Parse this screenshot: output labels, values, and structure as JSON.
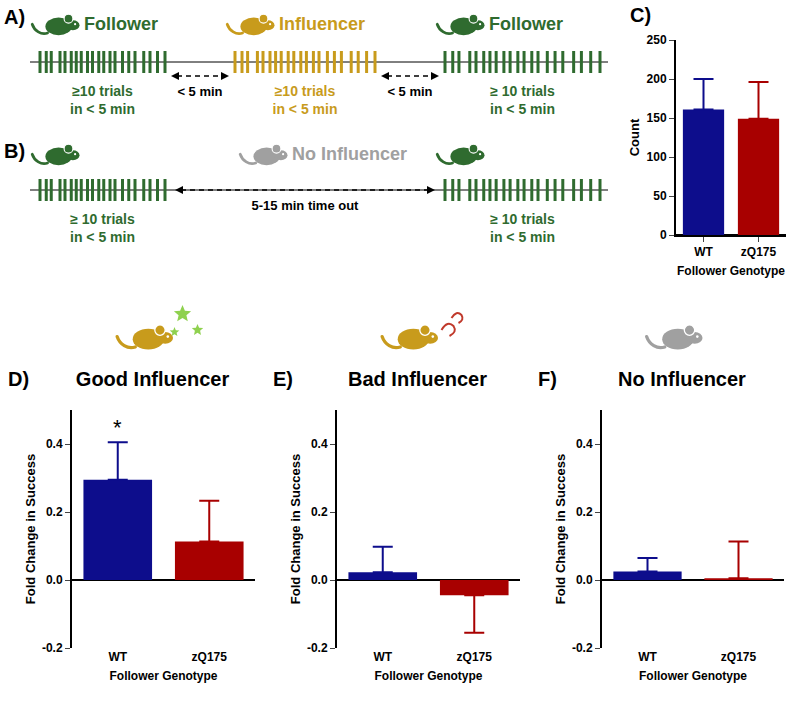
{
  "diagrams": {
    "A": {
      "label": "A)",
      "segments": [
        {
          "role": "Follower",
          "lines": [
            "≥10 trials",
            "in < 5 min"
          ]
        },
        {
          "role": "Influencer",
          "lines": [
            "≥10 trials",
            "in < 5 min"
          ]
        },
        {
          "role": "Follower",
          "lines": [
            "≥ 10 trials",
            "in < 5 min"
          ]
        }
      ],
      "gaps": [
        "< 5 min",
        "< 5 min"
      ]
    },
    "B": {
      "label": "B)",
      "segments": [
        {
          "lines": [
            "≥ 10 trials",
            "in < 5 min"
          ]
        },
        {
          "lines": [
            "≥ 10 trials",
            "in < 5 min"
          ]
        }
      ],
      "gap_role": "No Influencer",
      "gap": "5-15 min time out"
    }
  },
  "chart_data": [
    {
      "label": "C)",
      "type": "bar",
      "categories": [
        "WT",
        "zQ175"
      ],
      "values": [
        161,
        149
      ],
      "error": [
        39,
        47
      ],
      "colors": [
        "#0d0d8c",
        "#a80000"
      ],
      "x_label": "Follower Genotype",
      "y_label": "Count",
      "ylim": [
        0,
        250
      ],
      "yticks": [
        0,
        50,
        100,
        150,
        200,
        250
      ]
    },
    {
      "label": "D)",
      "type": "bar",
      "title": "Good Influencer",
      "categories": [
        "WT",
        "zQ175"
      ],
      "values": [
        0.295,
        0.113
      ],
      "error": [
        0.11,
        0.12
      ],
      "colors": [
        "#0d0d8c",
        "#a80000"
      ],
      "x_label": "Follower Genotype",
      "y_label": "Fold Change in Success",
      "ylim": [
        -0.2,
        0.5
      ],
      "yticks": [
        -0.2,
        {
          "value": 0,
          "label": "0.0"
        },
        0.2,
        0.4
      ],
      "annotations": [
        {
          "category": "WT",
          "text": "*"
        }
      ]
    },
    {
      "label": "E)",
      "type": "bar",
      "title": "Bad Influencer",
      "categories": [
        "WT",
        "zQ175"
      ],
      "values": [
        0.023,
        -0.045
      ],
      "error": [
        0.075,
        0.11
      ],
      "colors": [
        "#0d0d8c",
        "#a80000"
      ],
      "x_label": "Follower Genotype",
      "y_label": "Fold Change in Success",
      "ylim": [
        -0.2,
        0.5
      ],
      "yticks": [
        -0.2,
        {
          "value": 0,
          "label": "0.0"
        },
        0.2,
        0.4
      ]
    },
    {
      "label": "F)",
      "type": "bar",
      "title": "No Influencer",
      "categories": [
        "WT",
        "zQ175"
      ],
      "values": [
        0.025,
        0.005
      ],
      "error": [
        0.04,
        0.108
      ],
      "colors": [
        "#0d0d8c",
        "#a80000"
      ],
      "x_label": "Follower Genotype",
      "y_label": "Fold Change in Success",
      "ylim": [
        -0.2,
        0.5
      ],
      "yticks": [
        -0.2,
        {
          "value": 0,
          "label": "0.0"
        },
        0.2,
        0.4
      ]
    }
  ]
}
